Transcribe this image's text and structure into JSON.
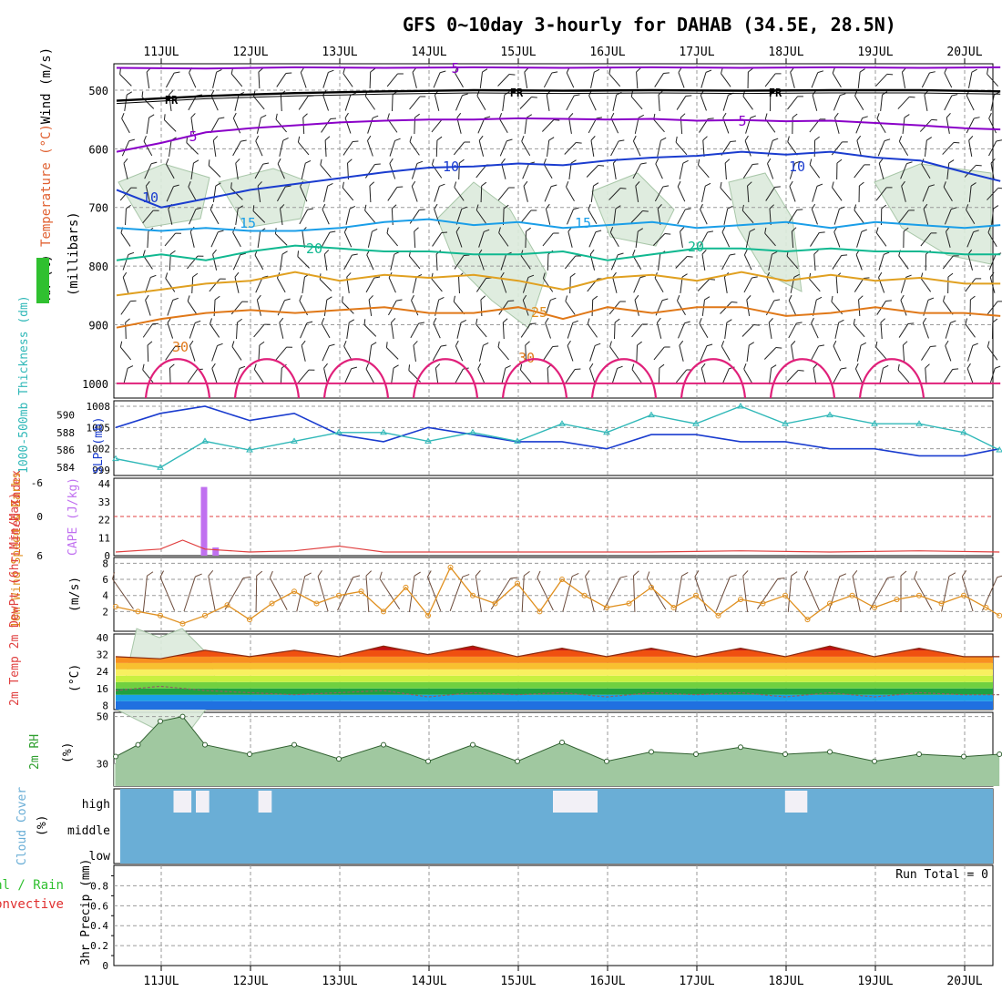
{
  "title": "GFS 0~10day 3-hourly for DAHAB (34.5E, 28.5N)",
  "days": [
    "11JUL",
    "12JUL",
    "13JUL",
    "14JUL",
    "15JUL",
    "16JUL",
    "17JUL",
    "18JUL",
    "19JUL",
    "20JUL"
  ],
  "chart_data": [
    {
      "type": "line",
      "panel": "upper-air",
      "ylabel_parts": [
        "RH (%)",
        "Temperature (°C)",
        "Wind (m/s)"
      ],
      "ylabel_unit": "(millibars)",
      "y_ticks": [
        500,
        600,
        700,
        800,
        900,
        1000
      ],
      "ylim": [
        455,
        1025
      ],
      "contour_labels": {
        "freezing": "FR",
        "temps": [
          "5",
          "5",
          "5",
          "10",
          "10",
          "10",
          "15",
          "15",
          "20",
          "20",
          "25",
          "30",
          "30"
        ]
      },
      "series": [
        {
          "name": "5",
          "color": "#8a00c8",
          "x": [
            0,
            1,
            2,
            3,
            4,
            5,
            6,
            7,
            8,
            9,
            9.9
          ],
          "values": [
            462,
            463,
            461,
            462,
            461,
            462,
            461,
            462,
            461,
            462,
            461
          ]
        },
        {
          "name": "FR",
          "color": "#000000",
          "x": [
            0,
            1,
            2,
            3,
            4,
            5,
            6,
            7,
            8,
            9,
            9.9
          ],
          "values": [
            518,
            510,
            505,
            502,
            500,
            501,
            500,
            501,
            500,
            500,
            502
          ]
        },
        {
          "name": "5",
          "color": "#8a00c8",
          "x": [
            0,
            0.5,
            1,
            1.5,
            2,
            2.5,
            3,
            3.5,
            4,
            4.5,
            5,
            5.5,
            6,
            6.5,
            7,
            7.5,
            8,
            8.5,
            9,
            9.5,
            9.9
          ],
          "values": [
            605,
            590,
            572,
            565,
            560,
            555,
            552,
            550,
            550,
            548,
            549,
            550,
            549,
            552,
            551,
            553,
            552,
            556,
            560,
            565,
            567
          ]
        },
        {
          "name": "10",
          "color": "#1a3ccf",
          "x": [
            0,
            0.5,
            1,
            1.5,
            2,
            2.5,
            3,
            3.5,
            4,
            4.5,
            5,
            5.5,
            6,
            6.5,
            7,
            7.5,
            8,
            8.5,
            9,
            9.5,
            9.9
          ],
          "values": [
            670,
            700,
            685,
            670,
            660,
            650,
            640,
            632,
            630,
            625,
            628,
            620,
            615,
            612,
            605,
            610,
            605,
            615,
            620,
            640,
            655
          ]
        },
        {
          "name": "15",
          "color": "#1a9ee8",
          "x": [
            0,
            0.5,
            1,
            1.5,
            2,
            2.5,
            3,
            3.5,
            4,
            4.5,
            5,
            5.5,
            6,
            6.5,
            7,
            7.5,
            8,
            8.5,
            9,
            9.5,
            9.9
          ],
          "values": [
            735,
            740,
            735,
            740,
            740,
            735,
            725,
            720,
            730,
            725,
            735,
            730,
            725,
            735,
            730,
            725,
            735,
            725,
            730,
            735,
            730
          ]
        },
        {
          "name": "20",
          "color": "#10b890",
          "x": [
            0,
            0.5,
            1,
            1.5,
            2,
            2.5,
            3,
            3.5,
            4,
            4.5,
            5,
            5.5,
            6,
            6.5,
            7,
            7.5,
            8,
            8.5,
            9,
            9.5,
            9.9
          ],
          "values": [
            790,
            780,
            790,
            775,
            765,
            770,
            775,
            775,
            780,
            780,
            775,
            790,
            780,
            770,
            770,
            775,
            770,
            775,
            775,
            780,
            780
          ]
        },
        {
          "name": "25",
          "color": "#e0a020",
          "x": [
            0,
            0.5,
            1,
            1.5,
            2,
            2.5,
            3,
            3.5,
            4,
            4.5,
            5,
            5.5,
            6,
            6.5,
            7,
            7.5,
            8,
            8.5,
            9,
            9.5,
            9.9
          ],
          "values": [
            850,
            840,
            830,
            825,
            810,
            825,
            815,
            820,
            815,
            825,
            840,
            820,
            815,
            825,
            810,
            825,
            815,
            825,
            820,
            830,
            830
          ]
        },
        {
          "name": "30",
          "color": "#e07818",
          "x": [
            0,
            0.5,
            1,
            1.5,
            2,
            2.5,
            3,
            3.5,
            4,
            4.5,
            5,
            5.5,
            6,
            6.5,
            7,
            7.5,
            8,
            8.5,
            9,
            9.5,
            9.9
          ],
          "values": [
            905,
            890,
            880,
            875,
            880,
            875,
            870,
            880,
            880,
            870,
            890,
            870,
            880,
            870,
            870,
            885,
            880,
            870,
            880,
            880,
            885
          ]
        },
        {
          "name": "",
          "color": "#e0207a",
          "x": [
            0,
            1,
            2,
            3,
            4,
            5,
            6,
            7,
            8,
            9,
            9.9
          ],
          "values": [
            1000,
            1000,
            1000,
            1000,
            1000,
            1000,
            1000,
            1000,
            1000,
            1000,
            1000
          ]
        }
      ],
      "wind_barbs": "present",
      "rh_shading": "light green patches near 650-850 mb"
    },
    {
      "type": "line",
      "panel": "slp-thickness",
      "ylabel_left": "1000-500mb Thickness (dm)",
      "ylabel_right": "SLP (mb)",
      "thickness_ticks": [
        "584",
        "586",
        "588",
        "590"
      ],
      "slp_ticks": [
        "999",
        "1002",
        "1005",
        "1008"
      ],
      "series": [
        {
          "name": "SLP (mb)",
          "color": "#1a3ccf",
          "x": [
            0,
            0.5,
            1,
            1.5,
            2,
            2.5,
            3,
            3.5,
            4,
            4.5,
            5,
            5.5,
            6,
            6.5,
            7,
            7.5,
            8,
            8.5,
            9,
            9.5,
            9.9
          ],
          "values": [
            1005,
            1007,
            1008,
            1006,
            1007,
            1004,
            1003,
            1005,
            1004,
            1003,
            1003,
            1002,
            1004,
            1004,
            1003,
            1003,
            1002,
            1002,
            1001,
            1001,
            1002
          ]
        },
        {
          "name": "Thickness",
          "color": "#30b8b8",
          "x": [
            0,
            0.5,
            1,
            1.5,
            2,
            2.5,
            3,
            3.5,
            4,
            4.5,
            5,
            5.5,
            6,
            6.5,
            7,
            7.5,
            8,
            8.5,
            9,
            9.5,
            9.9
          ],
          "values": [
            585,
            584,
            587,
            586,
            587,
            588,
            588,
            587,
            588,
            587,
            589,
            588,
            590,
            589,
            591,
            589,
            590,
            589,
            589,
            588,
            586
          ]
        }
      ]
    },
    {
      "type": "bar",
      "panel": "cape-li",
      "ylabel_left": "Lifted Index",
      "ylabel_right": "CAPE (J/kg)",
      "li_ticks": [
        "6",
        "0",
        "-6"
      ],
      "cape_ticks": [
        "0",
        "11",
        "22",
        "33",
        "44"
      ],
      "cape_bars": {
        "x": [
          0.75,
          0.88
        ],
        "values": [
          42,
          5
        ]
      },
      "li_line": {
        "x": [
          0,
          0.5,
          0.75,
          1,
          1.5,
          2,
          2.5,
          3,
          4,
          5,
          6,
          7,
          8,
          9,
          9.9
        ],
        "values": [
          6,
          5.5,
          4,
          5.5,
          6,
          5.8,
          5,
          6,
          6,
          6,
          6,
          5.8,
          6,
          5.8,
          6
        ]
      }
    },
    {
      "type": "line",
      "panel": "wind10m",
      "ylabel": "10m Wind Speed & Barbs",
      "unit": "(m/s)",
      "y_ticks": [
        "2",
        "4",
        "6",
        "8"
      ],
      "series": [
        {
          "name": "10m Wind Speed",
          "color": "#e09020",
          "x": [
            0,
            0.25,
            0.5,
            0.75,
            1,
            1.25,
            1.5,
            1.75,
            2,
            2.25,
            2.5,
            2.75,
            3,
            3.25,
            3.5,
            3.75,
            4,
            4.25,
            4.5,
            4.75,
            5,
            5.25,
            5.5,
            5.75,
            6,
            6.25,
            6.5,
            6.75,
            7,
            7.25,
            7.5,
            7.75,
            8,
            8.25,
            8.5,
            8.75,
            9,
            9.25,
            9.5,
            9.75,
            9.9
          ],
          "values": [
            2.6,
            2,
            1.5,
            0.5,
            1.5,
            2.8,
            1,
            3,
            4.5,
            3,
            4,
            4.5,
            2,
            5,
            1.5,
            7.5,
            4,
            3,
            5.5,
            2,
            6,
            4,
            2.5,
            3,
            5,
            2.5,
            4,
            1.5,
            3.5,
            3,
            4,
            1,
            3,
            4,
            2.5,
            3.5,
            4,
            3,
            4,
            2.5,
            1.5
          ]
        }
      ]
    },
    {
      "type": "area",
      "panel": "temp2m",
      "ylabel": "2m Temp 2m DewPt (6hr Min/Max)",
      "unit": "(°C)",
      "y_ticks": [
        "8",
        "16",
        "24",
        "32",
        "40"
      ],
      "series": [
        {
          "name": "2m Temp",
          "x": [
            0,
            0.5,
            1,
            1.5,
            2,
            2.5,
            3,
            3.5,
            4,
            4.5,
            5,
            5.5,
            6,
            6.5,
            7,
            7.5,
            8,
            8.5,
            9,
            9.5,
            9.9
          ],
          "values": [
            31,
            30,
            34,
            31,
            34,
            31,
            36,
            32,
            36,
            31,
            35,
            31,
            35,
            31,
            35,
            31,
            36,
            31,
            35,
            31,
            31
          ]
        },
        {
          "name": "2m DewPt",
          "x": [
            0,
            0.5,
            1,
            1.5,
            2,
            2.5,
            3,
            3.5,
            4,
            4.5,
            5,
            5.5,
            6,
            6.5,
            7,
            7.5,
            8,
            8.5,
            9,
            9.5,
            9.9
          ],
          "values": [
            15,
            17,
            15,
            14,
            13,
            14,
            15,
            12,
            14,
            13,
            14,
            12,
            14,
            13,
            14,
            12,
            14,
            12,
            14,
            13,
            13
          ]
        }
      ]
    },
    {
      "type": "area",
      "panel": "rh2m",
      "ylabel": "2m RH",
      "unit": "(%)",
      "y_ticks": [
        "30",
        "50"
      ],
      "series": [
        {
          "name": "2m RH",
          "color": "#30a030",
          "x": [
            0,
            0.25,
            0.5,
            0.75,
            1,
            1.5,
            2,
            2.5,
            3,
            3.5,
            4,
            4.5,
            5,
            5.5,
            6,
            6.5,
            7,
            7.5,
            8,
            8.5,
            9,
            9.5,
            9.9
          ],
          "values": [
            33,
            38,
            48,
            50,
            38,
            34,
            38,
            32,
            38,
            31,
            38,
            31,
            39,
            31,
            35,
            34,
            37,
            34,
            35,
            31,
            34,
            33,
            34
          ]
        }
      ]
    },
    {
      "type": "heatmap",
      "panel": "cloud",
      "ylabel": "Cloud Cover",
      "unit": "(%)",
      "levels": [
        "high",
        "middle",
        "low"
      ],
      "cloud_blocks": [
        {
          "x0": 0.75,
          "x1": 0.95,
          "level": "high"
        },
        {
          "x0": 1.0,
          "x1": 1.15,
          "level": "high"
        },
        {
          "x0": 1.7,
          "x1": 1.85,
          "level": "high"
        },
        {
          "x0": 5.0,
          "x1": 5.5,
          "level": "high"
        },
        {
          "x0": 7.6,
          "x1": 7.85,
          "level": "high"
        }
      ]
    },
    {
      "type": "bar",
      "panel": "precip",
      "ylabel_parts": [
        "Total / Rain",
        "Convective",
        "3hr Precip (mm)"
      ],
      "y_ticks": [
        "0",
        "0.2",
        "0.4",
        "0.6",
        "0.8"
      ],
      "run_total": "Run Total = 0"
    }
  ]
}
